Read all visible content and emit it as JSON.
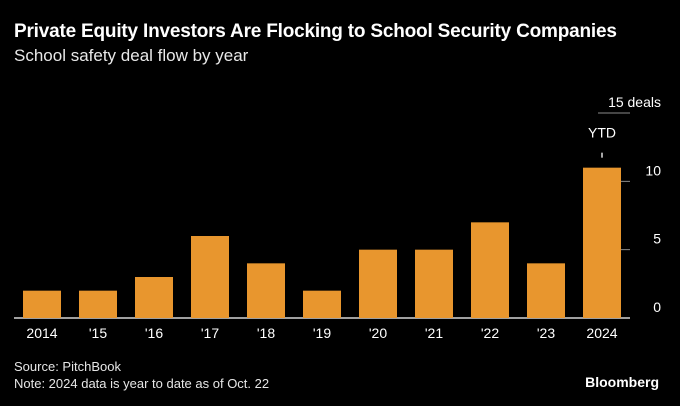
{
  "chart_data": {
    "type": "bar",
    "title": "Private Equity Investors Are Flocking to School Security Companies",
    "subtitle": "School safety deal flow by year",
    "categories": [
      "2014",
      "'15",
      "'16",
      "'17",
      "'18",
      "'19",
      "'20",
      "'21",
      "'22",
      "'23",
      "2024"
    ],
    "values": [
      2,
      2,
      3,
      6,
      4,
      2,
      5,
      5,
      7,
      4,
      11
    ],
    "xlabel": "",
    "ylabel": "deals",
    "ylim": [
      0,
      15
    ],
    "yticks": [
      {
        "value": 0,
        "label": "0"
      },
      {
        "value": 5,
        "label": "5"
      },
      {
        "value": 10,
        "label": "10"
      },
      {
        "value": 15,
        "label": "15 deals"
      }
    ],
    "annotations": [
      {
        "category": "2024",
        "text": "YTD"
      }
    ],
    "grid": true,
    "bar_color": "#e8962e"
  },
  "footer": {
    "source": "Source: PitchBook",
    "note": "Note: 2024 data is year to date as of Oct. 22",
    "brand": "Bloomberg"
  }
}
